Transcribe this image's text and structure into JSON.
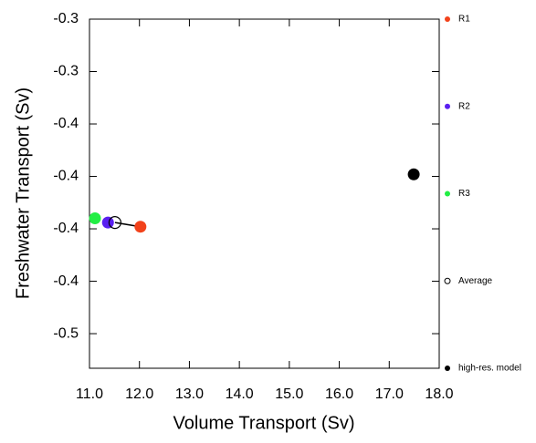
{
  "chart_data": {
    "type": "scatter",
    "x_label": "Volume Transport (Sv)",
    "y_label": "Freshwater Transport (Sv)",
    "xlim": [
      11.0,
      18.0
    ],
    "xticks": [
      {
        "value": 11,
        "label": "11.0"
      },
      {
        "value": 12,
        "label": "12.0"
      },
      {
        "value": 13,
        "label": "13.0"
      },
      {
        "value": 14,
        "label": "14.0"
      },
      {
        "value": 15,
        "label": "15.0"
      },
      {
        "value": 16,
        "label": "16.0"
      },
      {
        "value": 17,
        "label": "17.0"
      },
      {
        "value": 18,
        "label": "18.0"
      }
    ],
    "ylim": [
      -0.4665,
      -0.3
    ],
    "yticks": [
      {
        "value": -0.3,
        "label": "-0.3"
      },
      {
        "value": -0.325,
        "label": "-0.3"
      },
      {
        "value": -0.35,
        "label": "-0.4"
      },
      {
        "value": -0.375,
        "label": "-0.4"
      },
      {
        "value": -0.4,
        "label": "-0.4"
      },
      {
        "value": -0.425,
        "label": "-0.4"
      },
      {
        "value": -0.45,
        "label": "-0.5"
      }
    ],
    "series": [
      {
        "name": "R1",
        "color": "#f2421b",
        "marker": "filled",
        "x": [
          12.02
        ],
        "values": [
          -0.399
        ]
      },
      {
        "name": "R2",
        "color": "#5a1ff0",
        "marker": "filled",
        "x": [
          11.37
        ],
        "values": [
          -0.397
        ]
      },
      {
        "name": "R3",
        "color": "#22ee44",
        "marker": "filled",
        "x": [
          11.11
        ],
        "values": [
          -0.395
        ]
      },
      {
        "name": "Average",
        "color": "#000000",
        "marker": "open",
        "x": [
          11.51
        ],
        "values": [
          -0.397
        ]
      },
      {
        "name": "high-res. model",
        "color": "#000000",
        "marker": "filled",
        "x": [
          17.49
        ],
        "values": [
          -0.374
        ]
      }
    ]
  }
}
